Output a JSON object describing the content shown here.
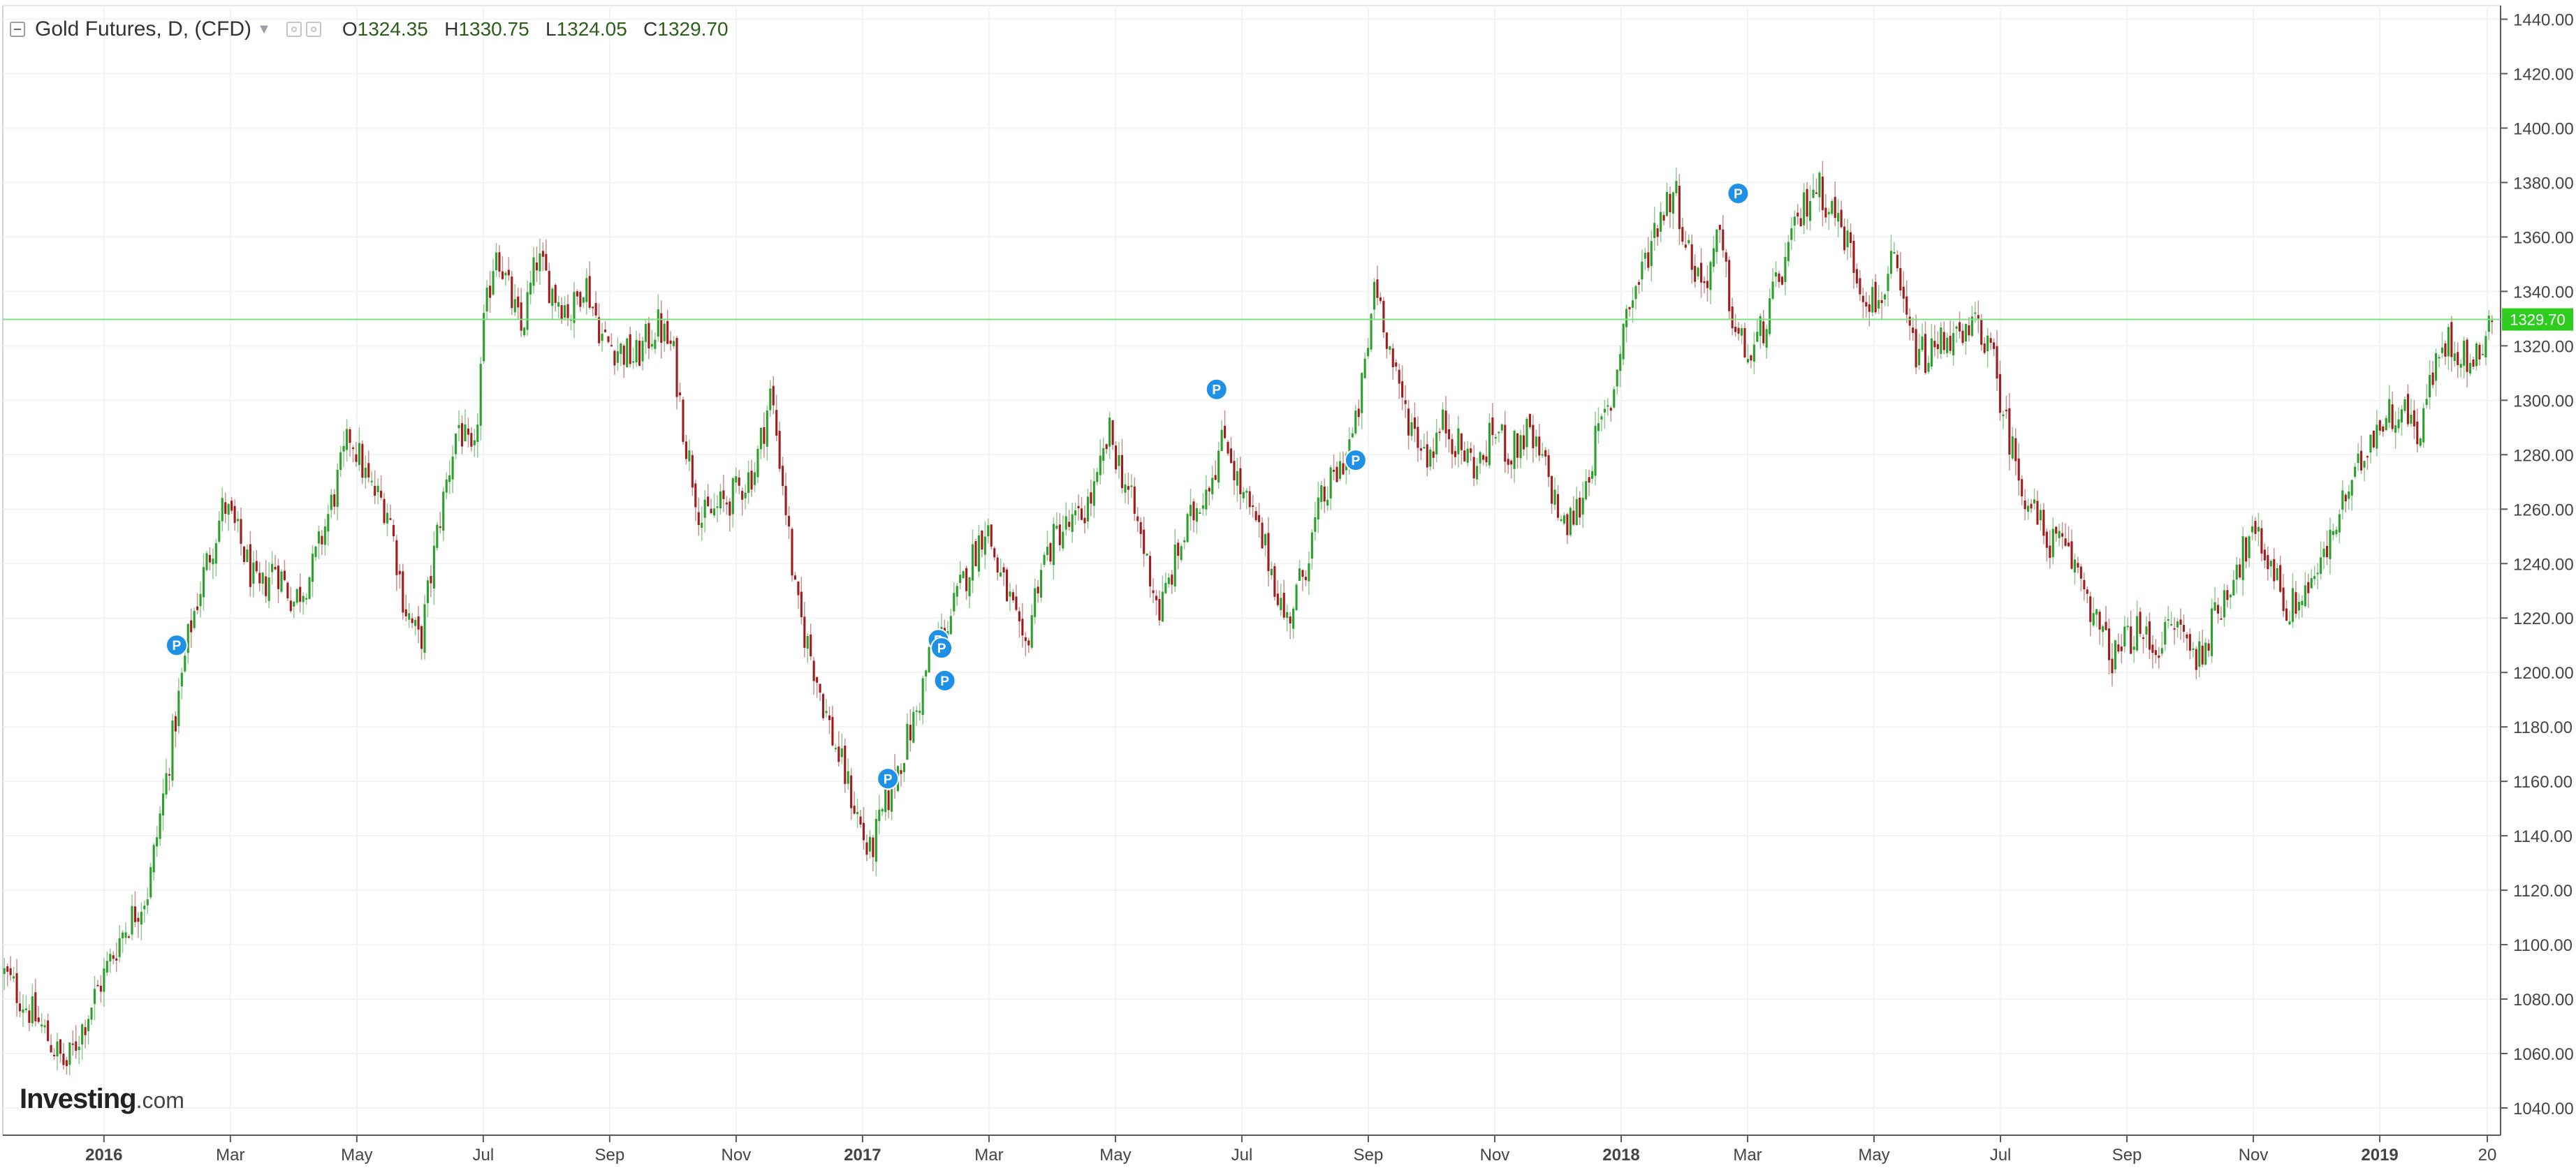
{
  "header": {
    "title": "Gold Futures, D, (CFD)",
    "open_label": "O",
    "open_value": "1324.35",
    "high_label": "H",
    "high_value": "1330.75",
    "low_label": "L",
    "low_value": "1324.05",
    "close_label": "C",
    "close_value": "1329.70"
  },
  "logo": {
    "brand": "Investing",
    "suffix": ".com"
  },
  "colors": {
    "up": "#2ca02c",
    "down": "#a11d1d",
    "marker": "#1e90e6",
    "last_price_line": "#7ee07e",
    "grid": "#f1f3f6"
  },
  "chart_data": {
    "type": "candlestick",
    "title": "Gold Futures, D, (CFD)",
    "xlabel": "",
    "ylabel": "",
    "ylim": [
      1030,
      1445
    ],
    "y_ticks": [
      "1440.00",
      "1420.00",
      "1400.00",
      "1380.00",
      "1360.00",
      "1340.00",
      "1320.00",
      "1300.00",
      "1280.00",
      "1260.00",
      "1240.00",
      "1220.00",
      "1200.00",
      "1180.00",
      "1160.00",
      "1140.00",
      "1120.00",
      "1100.00",
      "1080.00",
      "1060.00",
      "1040.00"
    ],
    "x_ticks": [
      {
        "label": "2016",
        "t": 0.0,
        "bold": true
      },
      {
        "label": "Mar",
        "t": 2.0
      },
      {
        "label": "May",
        "t": 4.0
      },
      {
        "label": "Jul",
        "t": 6.0
      },
      {
        "label": "Sep",
        "t": 8.0
      },
      {
        "label": "Nov",
        "t": 10.0
      },
      {
        "label": "2017",
        "t": 12.0,
        "bold": true
      },
      {
        "label": "Mar",
        "t": 14.0
      },
      {
        "label": "May",
        "t": 16.0
      },
      {
        "label": "Jul",
        "t": 18.0
      },
      {
        "label": "Sep",
        "t": 20.0
      },
      {
        "label": "Nov",
        "t": 22.0
      },
      {
        "label": "2018",
        "t": 24.0,
        "bold": true
      },
      {
        "label": "Mar",
        "t": 26.0
      },
      {
        "label": "May",
        "t": 28.0
      },
      {
        "label": "Jul",
        "t": 30.0
      },
      {
        "label": "Sep",
        "t": 32.0
      },
      {
        "label": "Nov",
        "t": 34.0
      },
      {
        "label": "2019",
        "t": 36.0,
        "bold": true
      },
      {
        "label": "20",
        "t": 37.7
      }
    ],
    "t_range": [
      -1.6,
      37.8
    ],
    "last_price": 1329.7,
    "last_price_label": "1329.70",
    "candle_count": 800,
    "price_path": [
      [
        -1.6,
        1090
      ],
      [
        -1.0,
        1070
      ],
      [
        -0.6,
        1055
      ],
      [
        -0.2,
        1078
      ],
      [
        0.3,
        1105
      ],
      [
        0.7,
        1120
      ],
      [
        1.1,
        1178
      ],
      [
        1.35,
        1215
      ],
      [
        1.6,
        1238
      ],
      [
        1.9,
        1262
      ],
      [
        2.15,
        1248
      ],
      [
        2.45,
        1228
      ],
      [
        2.7,
        1240
      ],
      [
        3.0,
        1226
      ],
      [
        3.3,
        1238
      ],
      [
        3.6,
        1262
      ],
      [
        3.9,
        1288
      ],
      [
        4.2,
        1268
      ],
      [
        4.5,
        1260
      ],
      [
        4.75,
        1225
      ],
      [
        5.0,
        1210
      ],
      [
        5.3,
        1255
      ],
      [
        5.6,
        1292
      ],
      [
        5.85,
        1275
      ],
      [
        6.0,
        1325
      ],
      [
        6.2,
        1358
      ],
      [
        6.4,
        1340
      ],
      [
        6.6,
        1325
      ],
      [
        6.85,
        1352
      ],
      [
        7.1,
        1340
      ],
      [
        7.4,
        1332
      ],
      [
        7.6,
        1345
      ],
      [
        7.9,
        1322
      ],
      [
        8.2,
        1318
      ],
      [
        8.4,
        1315
      ],
      [
        8.75,
        1328
      ],
      [
        9.0,
        1318
      ],
      [
        9.2,
        1285
      ],
      [
        9.45,
        1256
      ],
      [
        9.7,
        1260
      ],
      [
        10.0,
        1266
      ],
      [
        10.3,
        1275
      ],
      [
        10.55,
        1303
      ],
      [
        10.75,
        1268
      ],
      [
        10.95,
        1225
      ],
      [
        11.2,
        1205
      ],
      [
        11.5,
        1178
      ],
      [
        11.75,
        1160
      ],
      [
        11.95,
        1145
      ],
      [
        12.1,
        1132
      ],
      [
        12.35,
        1150
      ],
      [
        12.6,
        1168
      ],
      [
        12.85,
        1185
      ],
      [
        13.05,
        1205
      ],
      [
        13.35,
        1218
      ],
      [
        13.7,
        1240
      ],
      [
        13.95,
        1255
      ],
      [
        14.15,
        1237
      ],
      [
        14.35,
        1225
      ],
      [
        14.55,
        1205
      ],
      [
        14.8,
        1238
      ],
      [
        15.1,
        1252
      ],
      [
        15.4,
        1255
      ],
      [
        15.7,
        1268
      ],
      [
        15.9,
        1288
      ],
      [
        16.15,
        1270
      ],
      [
        16.4,
        1250
      ],
      [
        16.7,
        1222
      ],
      [
        17.0,
        1245
      ],
      [
        17.3,
        1262
      ],
      [
        17.55,
        1275
      ],
      [
        17.75,
        1288
      ],
      [
        17.95,
        1268
      ],
      [
        18.2,
        1255
      ],
      [
        18.45,
        1240
      ],
      [
        18.7,
        1218
      ],
      [
        18.95,
        1235
      ],
      [
        19.25,
        1262
      ],
      [
        19.55,
        1275
      ],
      [
        19.8,
        1290
      ],
      [
        20.0,
        1320
      ],
      [
        20.1,
        1345
      ],
      [
        20.25,
        1330
      ],
      [
        20.45,
        1305
      ],
      [
        20.7,
        1290
      ],
      [
        20.95,
        1280
      ],
      [
        21.2,
        1292
      ],
      [
        21.45,
        1282
      ],
      [
        21.75,
        1275
      ],
      [
        22.0,
        1290
      ],
      [
        22.25,
        1280
      ],
      [
        22.5,
        1288
      ],
      [
        22.8,
        1275
      ],
      [
        23.1,
        1252
      ],
      [
        23.35,
        1262
      ],
      [
        23.6,
        1285
      ],
      [
        23.85,
        1300
      ],
      [
        24.05,
        1330
      ],
      [
        24.3,
        1345
      ],
      [
        24.6,
        1368
      ],
      [
        24.85,
        1378
      ],
      [
        25.05,
        1355
      ],
      [
        25.3,
        1342
      ],
      [
        25.55,
        1360
      ],
      [
        25.8,
        1325
      ],
      [
        26.05,
        1315
      ],
      [
        26.3,
        1330
      ],
      [
        26.55,
        1348
      ],
      [
        26.8,
        1365
      ],
      [
        27.05,
        1380
      ],
      [
        27.3,
        1372
      ],
      [
        27.55,
        1360
      ],
      [
        27.8,
        1342
      ],
      [
        28.05,
        1335
      ],
      [
        28.3,
        1350
      ],
      [
        28.6,
        1320
      ],
      [
        28.85,
        1315
      ],
      [
        29.15,
        1325
      ],
      [
        29.4,
        1320
      ],
      [
        29.65,
        1330
      ],
      [
        29.9,
        1312
      ],
      [
        30.15,
        1285
      ],
      [
        30.4,
        1265
      ],
      [
        30.7,
        1250
      ],
      [
        31.0,
        1245
      ],
      [
        31.3,
        1235
      ],
      [
        31.55,
        1215
      ],
      [
        31.8,
        1205
      ],
      [
        32.1,
        1215
      ],
      [
        32.45,
        1210
      ],
      [
        32.8,
        1218
      ],
      [
        33.1,
        1205
      ],
      [
        33.4,
        1220
      ],
      [
        33.7,
        1238
      ],
      [
        34.0,
        1250
      ],
      [
        34.3,
        1240
      ],
      [
        34.55,
        1222
      ],
      [
        34.8,
        1230
      ],
      [
        35.1,
        1240
      ],
      [
        35.35,
        1258
      ],
      [
        35.6,
        1270
      ],
      [
        35.85,
        1288
      ],
      [
        36.1,
        1294
      ],
      [
        36.35,
        1298
      ],
      [
        36.6,
        1288
      ],
      [
        36.85,
        1310
      ],
      [
        37.05,
        1322
      ],
      [
        37.3,
        1318
      ],
      [
        37.5,
        1312
      ],
      [
        37.7,
        1329.7
      ]
    ],
    "markers": [
      {
        "label": "P",
        "t": 1.15,
        "y": 1210
      },
      {
        "label": "P",
        "t": 12.4,
        "y": 1161
      },
      {
        "label": "P",
        "t": 13.2,
        "y": 1212
      },
      {
        "label": "P",
        "t": 13.25,
        "y": 1209
      },
      {
        "label": "P",
        "t": 13.3,
        "y": 1197
      },
      {
        "label": "P",
        "t": 17.6,
        "y": 1304
      },
      {
        "label": "P",
        "t": 19.8,
        "y": 1278
      },
      {
        "label": "P",
        "t": 25.85,
        "y": 1376
      }
    ]
  }
}
